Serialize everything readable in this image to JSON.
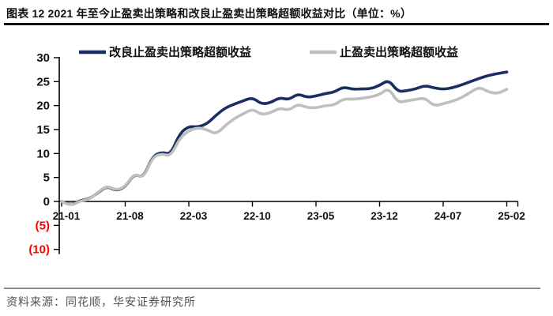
{
  "header": {
    "title": "图表 12  2021 年至今止盈卖出策略和改良止盈卖出策略超额收益对比（单位：%）"
  },
  "chart_data": {
    "type": "line",
    "title": "2021 年至今止盈卖出策略和改良止盈卖出策略超额收益对比",
    "unit": "%",
    "x_start": "21-01",
    "x_end": "25-02",
    "x_interval": "monthly",
    "x_ticks_every": 7,
    "x_tick_labels": [
      "21-01",
      "21-08",
      "22-03",
      "22-10",
      "23-05",
      "23-12",
      "24-07",
      "25-02"
    ],
    "ylim": [
      -10,
      30
    ],
    "y_ticks": [
      {
        "label": "30",
        "value": 30
      },
      {
        "label": "25",
        "value": 25
      },
      {
        "label": "20",
        "value": 20
      },
      {
        "label": "15",
        "value": 15
      },
      {
        "label": "10",
        "value": 10
      },
      {
        "label": "5",
        "value": 5
      },
      {
        "label": "0",
        "value": 0
      },
      {
        "label": "(5)",
        "value": -5
      },
      {
        "label": "(10)",
        "value": -10
      }
    ],
    "grid": false,
    "legend_position": "top",
    "axis_color": "#000000",
    "negative_label_color": "#ff0000",
    "series": [
      {
        "name": "改良止盈卖出策略超额收益",
        "color": "#1b2e62",
        "values": [
          0,
          -0.9,
          0.2,
          0.5,
          1.8,
          3.2,
          2.2,
          3,
          5.8,
          4.9,
          9.4,
          10.3,
          9.8,
          14.2,
          15.7,
          15.5,
          16.2,
          18,
          19.5,
          20.3,
          21,
          21.7,
          20.3,
          20.6,
          21.7,
          21.2,
          22.5,
          21.7,
          22,
          22.5,
          22.8,
          23.9,
          23.4,
          23.5,
          23.5,
          24.2,
          25.4,
          22.9,
          23.1,
          23.5,
          24.2,
          23.7,
          23.4,
          23.7,
          24.3,
          25,
          25.7,
          26.3,
          26.7,
          27
        ]
      },
      {
        "name": "止盈卖出策略超额收益",
        "color": "#bfbfbf",
        "values": [
          0,
          -1,
          0.1,
          0.4,
          1.9,
          3.3,
          2.3,
          3.1,
          5.9,
          4.8,
          9.2,
          10,
          9.4,
          13.2,
          14.8,
          15.4,
          15,
          14,
          15.8,
          17.3,
          18.3,
          19.3,
          18.1,
          18.5,
          19.5,
          19,
          20.3,
          19.6,
          19.5,
          20,
          20.1,
          21.4,
          21.3,
          21.5,
          21.8,
          22.3,
          23.7,
          20.6,
          21,
          21.3,
          21.6,
          19.9,
          20.4,
          20.9,
          21.6,
          22.8,
          23.9,
          22.8,
          22.5,
          23.4
        ]
      }
    ]
  },
  "footer": {
    "source": "资料来源：同花顺，华安证券研究所"
  }
}
